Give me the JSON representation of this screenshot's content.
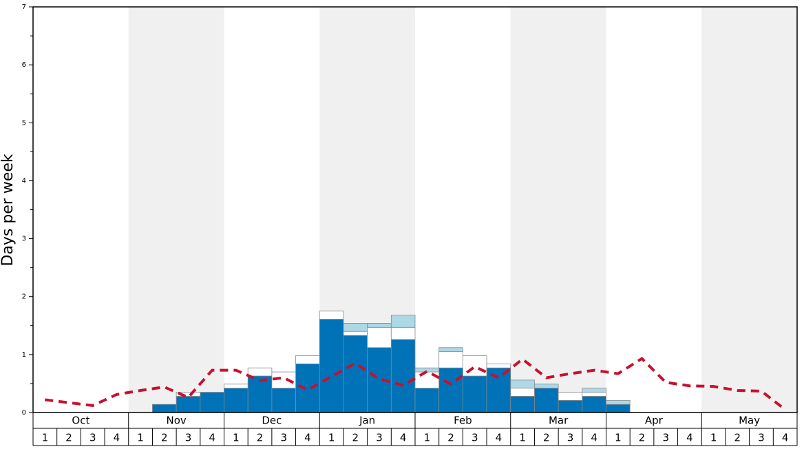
{
  "chart_data": {
    "type": "bar",
    "y_label": "Days per week",
    "months": [
      "Oct",
      "Nov",
      "Dec",
      "Jan",
      "Feb",
      "Mar",
      "Apr",
      "May"
    ],
    "weeks": [
      1,
      2,
      3,
      4
    ],
    "ylim": [
      0,
      7
    ],
    "yticks": [
      0,
      1,
      2,
      3,
      4,
      5,
      6,
      7
    ],
    "minor_yticks": [
      0.5,
      1.5,
      2.5,
      3.5,
      4.5,
      5.5,
      6.5
    ],
    "shade_color": "#f0f0f0",
    "series": [
      {
        "color": "#0072b8",
        "values": [
          0,
          0,
          0,
          0,
          0,
          0.14,
          0.28,
          0.35,
          0.42,
          0.63,
          0.42,
          0.84,
          1.61,
          1.33,
          1.12,
          1.26,
          0.42,
          0.77,
          0.63,
          0.77,
          0.28,
          0.42,
          0.21,
          0.28,
          0.14,
          0,
          0,
          0,
          0,
          0,
          0,
          0
        ]
      },
      {
        "color": "#ffffff",
        "values": [
          0,
          0,
          0,
          0,
          0,
          0,
          0.07,
          0,
          0.07,
          0.14,
          0.28,
          0.14,
          0.14,
          0.07,
          0.35,
          0.21,
          0.28,
          0.28,
          0.35,
          0.07,
          0.14,
          0,
          0.14,
          0.07,
          0,
          0,
          0,
          0,
          0,
          0,
          0,
          0
        ]
      },
      {
        "color": "#add8e6",
        "values": [
          0,
          0,
          0,
          0,
          0,
          0,
          0,
          0,
          0,
          0,
          0,
          0,
          0,
          0.14,
          0.07,
          0.21,
          0.07,
          0.07,
          0,
          0,
          0.14,
          0.07,
          0,
          0.07,
          0.07,
          0,
          0,
          0,
          0,
          0,
          0,
          0
        ]
      },
      {
        "type": "line",
        "color": "#c8102e",
        "values": [
          0.22,
          0.17,
          0.12,
          0.31,
          0.38,
          0.44,
          0.26,
          0.73,
          0.73,
          0.55,
          0.6,
          0.39,
          0.62,
          0.85,
          0.58,
          0.47,
          0.71,
          0.49,
          0.79,
          0.6,
          0.92,
          0.6,
          0.67,
          0.73,
          0.67,
          0.93,
          0.52,
          0.46,
          0.45,
          0.38,
          0.37,
          0.05
        ]
      }
    ]
  }
}
